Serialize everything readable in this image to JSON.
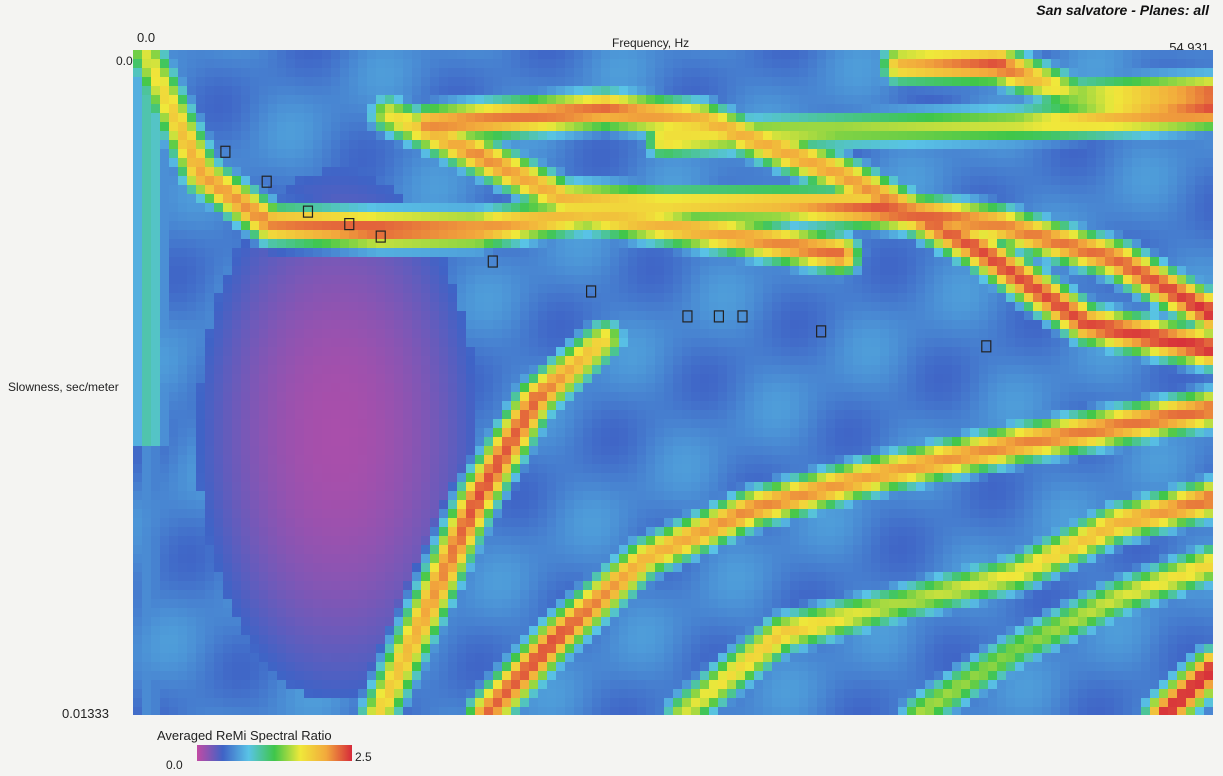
{
  "chart_data": {
    "type": "heatmap",
    "title": "San salvatore - Planes: all",
    "xlabel": "Frequency, Hz",
    "ylabel": "Slowness, sec/meter",
    "xlim": [
      0.0,
      54.931
    ],
    "ylim": [
      0.0,
      0.01333
    ],
    "x_tick_labels": [
      "0.0",
      "54.931"
    ],
    "y_tick_labels": [
      "0.0",
      "0.01333"
    ],
    "colorbar": {
      "label": "Averaged ReMi Spectral Ratio",
      "min": 0.0,
      "max": 2.5,
      "min_label": "0.0",
      "max_label": "2.5",
      "colors": [
        "#c24aa4",
        "#3f63c6",
        "#59c3e6",
        "#3fc64a",
        "#f0e83a",
        "#f2a93c",
        "#d62a3a"
      ]
    },
    "ridges": [
      {
        "points": [
          [
            0.6,
            0.0
          ],
          [
            3.5,
            0.0025
          ],
          [
            7.0,
            0.0035
          ],
          [
            12.5,
            0.0036
          ],
          [
            17.5,
            0.0036
          ],
          [
            23.0,
            0.0033
          ],
          [
            30.0,
            0.0037
          ],
          [
            36.0,
            0.0041
          ]
        ],
        "values": [
          1.6,
          2.1,
          2.2,
          2.4,
          2.2,
          1.9,
          2.1,
          2.3
        ]
      },
      {
        "points": [
          [
            13.0,
            0.0013
          ],
          [
            17.5,
            0.0021
          ],
          [
            22.0,
            0.003
          ],
          [
            27.0,
            0.0031
          ],
          [
            33.0,
            0.0031
          ],
          [
            38.0,
            0.0032
          ],
          [
            44.0,
            0.0035
          ],
          [
            50.0,
            0.0042
          ],
          [
            54.9,
            0.0053
          ]
        ],
        "values": [
          1.7,
          2.2,
          2.0,
          1.8,
          2.0,
          2.4,
          2.2,
          2.3,
          2.5
        ]
      },
      {
        "points": [
          [
            15.0,
            0.0015
          ],
          [
            24.0,
            0.0012
          ],
          [
            29.0,
            0.0014
          ],
          [
            36.0,
            0.0025
          ],
          [
            43.0,
            0.004
          ],
          [
            48.5,
            0.0055
          ],
          [
            54.9,
            0.006
          ]
        ],
        "values": [
          2.2,
          2.3,
          2.0,
          2.1,
          2.4,
          2.4,
          2.5
        ]
      },
      {
        "points": [
          [
            27.0,
            0.0018
          ],
          [
            36.0,
            0.0016
          ],
          [
            45.0,
            0.0015
          ],
          [
            54.9,
            0.0012
          ]
        ],
        "values": [
          1.8,
          1.5,
          1.6,
          2.4
        ]
      },
      {
        "points": [
          [
            39.0,
            0.0003
          ],
          [
            44.0,
            0.0003
          ],
          [
            48.0,
            0.0009
          ],
          [
            54.9,
            0.0009
          ]
        ],
        "values": [
          2.0,
          2.4,
          1.5,
          2.4
        ]
      },
      {
        "points": [
          [
            12.5,
            0.0133
          ],
          [
            15.0,
            0.0112
          ],
          [
            17.5,
            0.009
          ],
          [
            20.5,
            0.007
          ],
          [
            24.0,
            0.0058
          ]
        ],
        "values": [
          1.8,
          2.1,
          2.4,
          2.3,
          1.8
        ]
      },
      {
        "points": [
          [
            18.0,
            0.0133
          ],
          [
            21.5,
            0.0118
          ],
          [
            26.0,
            0.0102
          ],
          [
            31.5,
            0.0092
          ],
          [
            38.0,
            0.0085
          ],
          [
            45.0,
            0.0079
          ],
          [
            54.9,
            0.0072
          ]
        ],
        "values": [
          2.3,
          2.4,
          2.0,
          2.2,
          2.1,
          2.2,
          2.3
        ]
      },
      {
        "points": [
          [
            28.0,
            0.0133
          ],
          [
            33.0,
            0.0117
          ],
          [
            39.0,
            0.0111
          ],
          [
            45.0,
            0.0105
          ],
          [
            50.0,
            0.0095
          ],
          [
            54.9,
            0.009
          ]
        ],
        "values": [
          1.6,
          1.9,
          1.5,
          1.7,
          2.0,
          2.3
        ]
      },
      {
        "points": [
          [
            40.0,
            0.0133
          ],
          [
            45.0,
            0.012
          ],
          [
            50.0,
            0.011
          ],
          [
            54.9,
            0.0103
          ]
        ],
        "values": [
          1.5,
          1.4,
          1.6,
          1.8
        ]
      },
      {
        "points": [
          [
            52.5,
            0.0133
          ],
          [
            54.9,
            0.0124
          ]
        ],
        "values": [
          2.5,
          2.5
        ]
      }
    ],
    "picks": [
      [
        4.7,
        0.00204
      ],
      [
        6.8,
        0.00264
      ],
      [
        8.9,
        0.00324
      ],
      [
        11.0,
        0.00349
      ],
      [
        12.6,
        0.00374
      ],
      [
        18.3,
        0.00424
      ],
      [
        23.3,
        0.00484
      ],
      [
        28.2,
        0.00534
      ],
      [
        29.8,
        0.00534
      ],
      [
        31.0,
        0.00534
      ],
      [
        35.0,
        0.00564
      ],
      [
        43.4,
        0.00594
      ]
    ]
  }
}
